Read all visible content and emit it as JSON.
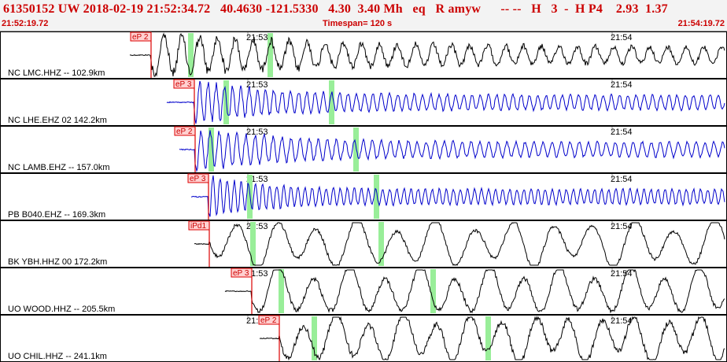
{
  "header": {
    "title": "61350152 UW 2018-02-19 21:52:34.72   40.4630 -121.5330   4.30  3.40 Mh   eq   R amyw      -- --   H   3  -  H P4    2.93  1.37",
    "time_start": "21:52:19.72",
    "timespan": "Timespan= 120 s",
    "time_end": "21:54:19.72"
  },
  "colors": {
    "header_text": "#cc0000",
    "trace_black": "#000000",
    "trace_blue": "#0000cc",
    "pick_line": "#dd0000",
    "pick_box": "#ffd0d0",
    "marker_green": "#99ee99",
    "tick_gray": "#999999"
  },
  "time_labels": [
    "21:53",
    "21:54"
  ],
  "traces": [
    {
      "label": "NC LMC.HHZ -- 102.9km",
      "pick": "eP 2",
      "color": "black"
    },
    {
      "label": "NC LHE.EHZ 02 142.2km",
      "pick": "eP 3",
      "color": "blue"
    },
    {
      "label": "NC LAMB.EHZ -- 157.0km",
      "pick": "eP 2",
      "color": "blue"
    },
    {
      "label": "PB B040.EHZ -- 169.3km",
      "pick": "eP 3",
      "color": "blue"
    },
    {
      "label": "BK YBH.HHZ 00 172.2km",
      "pick": "iPd1",
      "color": "black"
    },
    {
      "label": "UO WOOD.HHZ -- 205.5km",
      "pick": "eP 3",
      "color": "black"
    },
    {
      "label": "UO CHIL.HHZ -- 241.1km",
      "pick": "eP 2",
      "color": "black"
    }
  ]
}
